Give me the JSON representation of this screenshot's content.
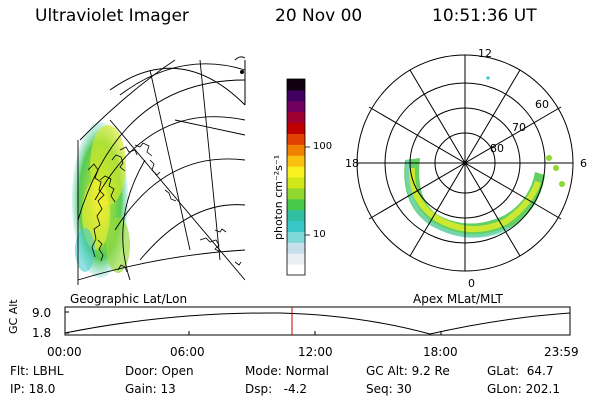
{
  "header": {
    "instrument": "Ultraviolet Imager",
    "date": "20 Nov 00",
    "time": "10:51:36 UT"
  },
  "colorbar": {
    "unit": "photon cm⁻²s⁻¹",
    "ticks": [
      "100",
      "10"
    ],
    "scale": "log",
    "colors": [
      "#ffffff",
      "#e8f0f4",
      "#c6dfe8",
      "#7fd8d8",
      "#38c8c8",
      "#30c0a0",
      "#48c848",
      "#90d830",
      "#d0e818",
      "#f8f020",
      "#f8c010",
      "#f08000",
      "#e04000",
      "#c00000",
      "#a00030",
      "#700060",
      "#400060",
      "#100010"
    ]
  },
  "geo_panel": {
    "label": "Geographic Lat/Lon"
  },
  "polar_panel": {
    "label": "Apex MLat/MLT",
    "mlt_labels": {
      "top": "12",
      "left": "18",
      "right": "6",
      "bottom": "0"
    },
    "lat_labels": [
      "60",
      "70",
      "80"
    ]
  },
  "altitude_plot": {
    "ylabel": "GC Alt",
    "yticks": [
      "9.0",
      "1.8"
    ],
    "xticks": [
      "00:00",
      "06:00",
      "12:00",
      "18:00",
      "23:59"
    ],
    "current_time_marker": "10:51:36",
    "marker_color": "#c00000"
  },
  "status": {
    "flt_label": "Flt:",
    "flt_value": "LBHL",
    "ip_label": "IP:",
    "ip_value": "18.0",
    "door_label": "Door:",
    "door_value": "Open",
    "gain_label": "Gain:",
    "gain_value": "13",
    "mode_label": "Mode:",
    "mode_value": "Normal",
    "dsp_label": "Dsp:",
    "dsp_value": "-4.2",
    "gcalt_label": "GC Alt:",
    "gcalt_value": "9.2 Re",
    "seq_label": "Seq:",
    "seq_value": "30",
    "glat_label": "GLat:",
    "glat_value": "64.7",
    "glon_label": "GLon:",
    "glon_value": "202.1"
  }
}
